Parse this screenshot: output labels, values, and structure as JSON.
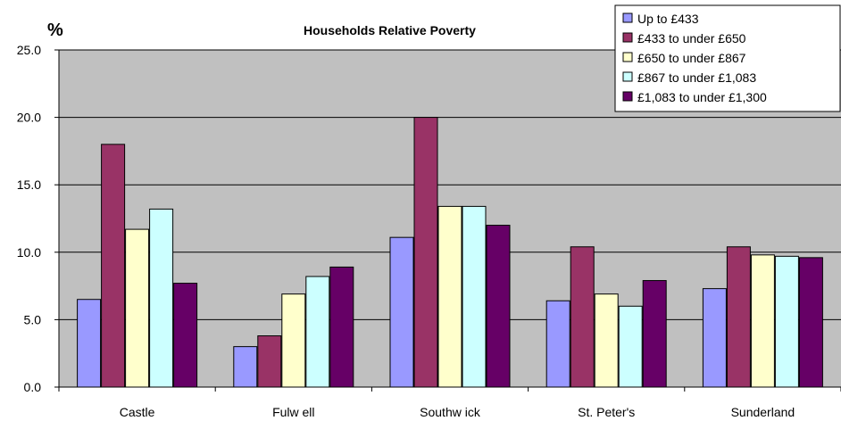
{
  "chart_data": {
    "type": "bar",
    "title": "Households Relative Poverty",
    "y_unit_label": "%",
    "ylim": [
      0,
      25
    ],
    "yticks": [
      "0.0",
      "5.0",
      "10.0",
      "15.0",
      "20.0",
      "25.0"
    ],
    "categories": [
      "Castle",
      "Fulw ell",
      "Southw ick",
      "St. Peter's",
      "Sunderland"
    ],
    "series": [
      {
        "name": "Up to £433",
        "color": "#9999ff",
        "values": [
          6.5,
          3.0,
          11.1,
          6.4,
          7.3
        ]
      },
      {
        "name": "£433 to under £650",
        "color": "#993366",
        "values": [
          18.0,
          3.8,
          20.0,
          10.4,
          10.4
        ]
      },
      {
        "name": "£650 to under £867",
        "color": "#ffffcc",
        "values": [
          11.7,
          6.9,
          13.4,
          6.9,
          9.8
        ]
      },
      {
        "name": "£867 to under £1,083",
        "color": "#ccffff",
        "values": [
          13.2,
          8.2,
          13.4,
          6.0,
          9.7
        ]
      },
      {
        "name": "£1,083 to under £1,300",
        "color": "#660066",
        "values": [
          7.7,
          8.9,
          12.0,
          7.9,
          9.6
        ]
      }
    ],
    "grid": true,
    "plot_background": "#c0c0c0",
    "legend_position": "top-right"
  }
}
